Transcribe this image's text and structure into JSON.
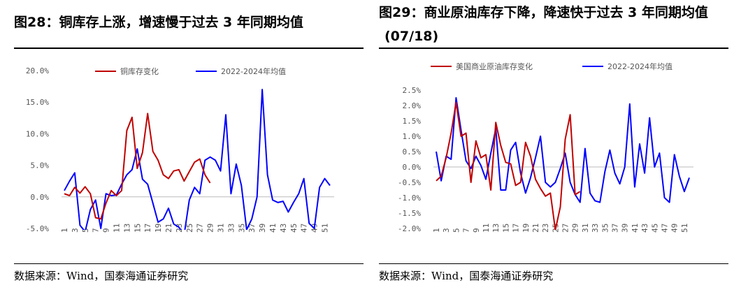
{
  "left": {
    "title": "图28：铜库存上涨，增速慢于过去 3 年同期均值",
    "source": "数据来源：Wind，国泰海通证券研究",
    "chart_data": {
      "type": "line",
      "x": [
        1,
        2,
        3,
        4,
        5,
        6,
        7,
        8,
        9,
        10,
        11,
        12,
        13,
        14,
        15,
        16,
        17,
        18,
        19,
        20,
        21,
        22,
        23,
        24,
        25,
        26,
        27,
        28,
        29,
        30,
        31,
        32,
        33,
        34,
        35,
        36,
        37,
        38,
        39,
        40,
        41,
        42,
        43,
        44,
        45,
        46,
        47,
        48,
        49,
        50,
        51,
        52
      ],
      "x_tick_labels": [
        "1",
        "3",
        "5",
        "7",
        "9",
        "11",
        "13",
        "15",
        "17",
        "19",
        "21",
        "23",
        "25",
        "27",
        "29",
        "31",
        "33",
        "35",
        "37",
        "39",
        "41",
        "43",
        "45",
        "47",
        "49",
        "51"
      ],
      "y_tick_labels": [
        "20.0%",
        "15.0%",
        "10.0%",
        "5.0%",
        "0.0%",
        "-5.0%"
      ],
      "ylim": [
        -5,
        20
      ],
      "series": [
        {
          "name": "铜库存变化",
          "color": "#c00000",
          "values": [
            0.5,
            0.2,
            1.5,
            0.6,
            1.6,
            0.5,
            -3.3,
            -3.5,
            -1.0,
            1.0,
            0.2,
            1.0,
            10.5,
            12.6,
            4.5,
            7.0,
            13.2,
            7.2,
            5.8,
            3.5,
            2.9,
            4.1,
            4.3,
            2.5,
            4.0,
            5.5,
            6.0,
            3.5,
            2.2,
            null,
            null,
            null,
            null,
            null,
            null,
            null,
            null,
            null,
            null,
            null,
            null,
            null,
            null,
            null,
            null,
            null,
            null,
            null,
            null,
            null,
            null,
            null
          ]
        },
        {
          "name": "2022-2024年均值",
          "color": "#0000ff",
          "values": [
            1.0,
            2.5,
            3.8,
            -4.5,
            -5.5,
            -2.0,
            -0.5,
            -5.0,
            0.5,
            0.2,
            0.3,
            2.0,
            3.5,
            4.3,
            7.6,
            2.8,
            2.0,
            -1.0,
            -4.0,
            -3.5,
            -1.8,
            -4.3,
            -4.8,
            -6.0,
            -0.5,
            1.5,
            0.5,
            5.8,
            6.3,
            5.8,
            4.1,
            13.0,
            0.5,
            5.2,
            1.8,
            -5.2,
            -3.5,
            0.0,
            17.0,
            3.5,
            -0.5,
            -0.9,
            -0.7,
            -2.4,
            -0.9,
            0.5,
            2.9,
            -4.2,
            -5.0,
            1.5,
            2.9,
            1.8
          ]
        }
      ]
    }
  },
  "right": {
    "title": "图29：商业原油库存下降，降速快于过去 3 年同期均值",
    "subtitle": "(07/18)",
    "source": "数据来源：Wind，国泰海通证券研究",
    "chart_data": {
      "type": "line",
      "x": [
        1,
        2,
        3,
        4,
        5,
        6,
        7,
        8,
        9,
        10,
        11,
        12,
        13,
        14,
        15,
        16,
        17,
        18,
        19,
        20,
        21,
        22,
        23,
        24,
        25,
        26,
        27,
        28,
        29,
        30,
        31,
        32,
        33,
        34,
        35,
        36,
        37,
        38,
        39,
        40,
        41,
        42,
        43,
        44,
        45,
        46,
        47,
        48,
        49,
        50,
        51,
        52
      ],
      "x_tick_labels": [
        "1",
        "3",
        "5",
        "7",
        "9",
        "11",
        "13",
        "15",
        "17",
        "19",
        "21",
        "23",
        "25",
        "27",
        "29",
        "31",
        "33",
        "35",
        "37",
        "39",
        "41",
        "43",
        "45",
        "47",
        "49",
        "51"
      ],
      "y_tick_labels": [
        "2.5%",
        "2.0%",
        "1.5%",
        "1.0%",
        "0.5%",
        "0.0%",
        "-0.5%",
        "-1.0%",
        "-1.5%",
        "-2.0%"
      ],
      "ylim": [
        -2,
        2.5
      ],
      "series": [
        {
          "name": "美国商业原油库存变化",
          "color": "#c00000",
          "values": [
            -0.45,
            -0.3,
            0.3,
            1.1,
            2.1,
            1.0,
            1.1,
            -0.5,
            0.85,
            0.3,
            0.4,
            -0.75,
            1.45,
            0.7,
            0.15,
            0.1,
            -0.6,
            -0.5,
            0.8,
            0.35,
            -0.4,
            -0.7,
            -0.95,
            -0.85,
            -2.05,
            -1.3,
            0.9,
            1.7,
            -0.9,
            -0.8,
            null,
            null,
            null,
            null,
            null,
            null,
            null,
            null,
            null,
            null,
            null,
            null,
            null,
            null,
            null,
            null,
            null,
            null,
            null,
            null,
            null,
            null
          ]
        },
        {
          "name": "2022-2024年均值",
          "color": "#0000ff",
          "values": [
            0.5,
            -0.45,
            0.35,
            0.25,
            2.25,
            1.2,
            0.2,
            -0.05,
            0.35,
            0.05,
            -0.4,
            0.45,
            1.25,
            -0.75,
            -0.75,
            0.55,
            0.8,
            -0.2,
            -0.85,
            -0.35,
            0.3,
            1.0,
            -0.5,
            -0.65,
            -0.5,
            -0.05,
            0.45,
            -0.5,
            -0.9,
            -1.15,
            0.6,
            -0.85,
            -1.1,
            -1.15,
            -0.15,
            0.55,
            -0.2,
            -0.55,
            0.0,
            2.05,
            -0.65,
            0.75,
            -0.2,
            1.6,
            0.0,
            0.45,
            -1.0,
            -1.15,
            0.4,
            -0.3,
            -0.8,
            -0.35
          ]
        }
      ]
    }
  }
}
